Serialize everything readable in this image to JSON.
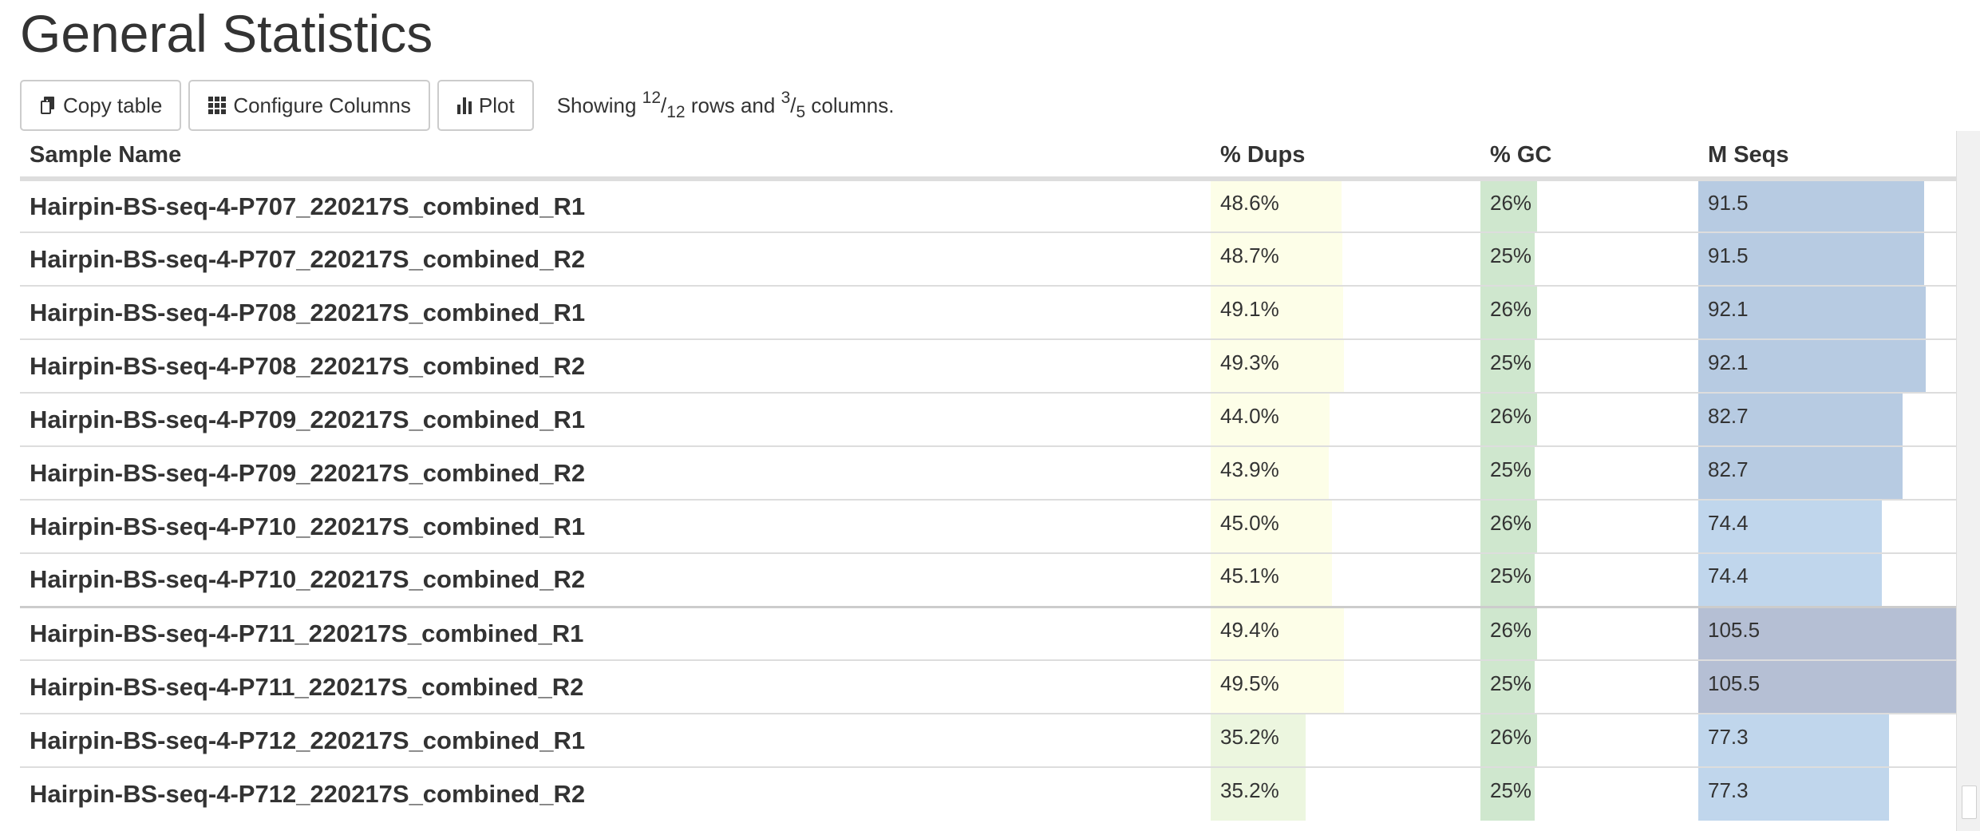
{
  "page": {
    "title": "General Statistics"
  },
  "toolbar": {
    "copy_label": "Copy table",
    "configure_label": "Configure Columns",
    "plot_label": "Plot",
    "showing_prefix": "Showing ",
    "rows_shown": "12",
    "rows_total": "12",
    "rows_text": " rows and ",
    "cols_shown": "3",
    "cols_total": "5",
    "cols_text": " columns."
  },
  "table": {
    "headers": [
      "Sample Name",
      "% Dups",
      "% GC",
      "M Seqs"
    ],
    "bar_colors": {
      "dups_high": "#fdfee8",
      "dups_low": "#ecf6df",
      "gc": "#cfe7ce",
      "mseqs_mid": "#b7cbe2",
      "mseqs_low": "#c0d6ec",
      "mseqs_top": "#b5bfd4"
    },
    "ranges": {
      "dups_max": 100,
      "gc_max": 100,
      "mseqs_max": 105.5
    },
    "rows": [
      {
        "name": "Hairpin-BS-seq-4-P707_220217S_combined_R1",
        "dups": "48.6%",
        "dups_v": 48.6,
        "gc": "26%",
        "gc_v": 26,
        "mseqs": "91.5",
        "mseqs_v": 91.5
      },
      {
        "name": "Hairpin-BS-seq-4-P707_220217S_combined_R2",
        "dups": "48.7%",
        "dups_v": 48.7,
        "gc": "25%",
        "gc_v": 25,
        "mseqs": "91.5",
        "mseqs_v": 91.5
      },
      {
        "name": "Hairpin-BS-seq-4-P708_220217S_combined_R1",
        "dups": "49.1%",
        "dups_v": 49.1,
        "gc": "26%",
        "gc_v": 26,
        "mseqs": "92.1",
        "mseqs_v": 92.1
      },
      {
        "name": "Hairpin-BS-seq-4-P708_220217S_combined_R2",
        "dups": "49.3%",
        "dups_v": 49.3,
        "gc": "25%",
        "gc_v": 25,
        "mseqs": "92.1",
        "mseqs_v": 92.1
      },
      {
        "name": "Hairpin-BS-seq-4-P709_220217S_combined_R1",
        "dups": "44.0%",
        "dups_v": 44.0,
        "gc": "26%",
        "gc_v": 26,
        "mseqs": "82.7",
        "mseqs_v": 82.7
      },
      {
        "name": "Hairpin-BS-seq-4-P709_220217S_combined_R2",
        "dups": "43.9%",
        "dups_v": 43.9,
        "gc": "25%",
        "gc_v": 25,
        "mseqs": "82.7",
        "mseqs_v": 82.7
      },
      {
        "name": "Hairpin-BS-seq-4-P710_220217S_combined_R1",
        "dups": "45.0%",
        "dups_v": 45.0,
        "gc": "26%",
        "gc_v": 26,
        "mseqs": "74.4",
        "mseqs_v": 74.4
      },
      {
        "name": "Hairpin-BS-seq-4-P710_220217S_combined_R2",
        "dups": "45.1%",
        "dups_v": 45.1,
        "gc": "25%",
        "gc_v": 25,
        "mseqs": "74.4",
        "mseqs_v": 74.4
      },
      {
        "name": "Hairpin-BS-seq-4-P711_220217S_combined_R1",
        "dups": "49.4%",
        "dups_v": 49.4,
        "gc": "26%",
        "gc_v": 26,
        "mseqs": "105.5",
        "mseqs_v": 105.5
      },
      {
        "name": "Hairpin-BS-seq-4-P711_220217S_combined_R2",
        "dups": "49.5%",
        "dups_v": 49.5,
        "gc": "25%",
        "gc_v": 25,
        "mseqs": "105.5",
        "mseqs_v": 105.5
      },
      {
        "name": "Hairpin-BS-seq-4-P712_220217S_combined_R1",
        "dups": "35.2%",
        "dups_v": 35.2,
        "gc": "26%",
        "gc_v": 26,
        "mseqs": "77.3",
        "mseqs_v": 77.3
      },
      {
        "name": "Hairpin-BS-seq-4-P712_220217S_combined_R2",
        "dups": "35.2%",
        "dups_v": 35.2,
        "gc": "25%",
        "gc_v": 25,
        "mseqs": "77.3",
        "mseqs_v": 77.3
      }
    ]
  }
}
